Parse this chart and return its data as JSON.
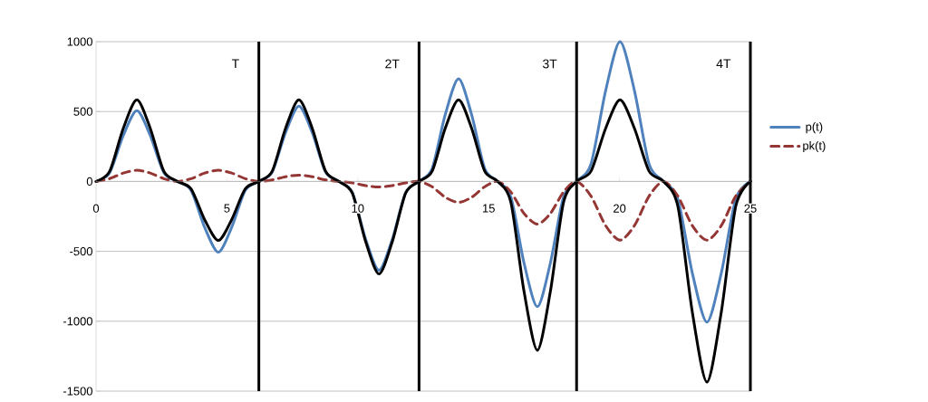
{
  "chart_data": {
    "type": "line",
    "x": [
      0,
      0.52,
      1.04,
      1.56,
      2.07,
      2.59,
      3.11,
      3.63,
      4.15,
      4.67,
      5.18,
      5.7,
      6.22,
      6.73,
      7.24,
      7.75,
      8.26,
      8.77,
      9.28,
      9.79,
      10.3,
      10.81,
      11.32,
      11.83,
      12.34,
      12.84,
      13.34,
      13.85,
      14.35,
      14.85,
      15.35,
      15.85,
      16.35,
      16.86,
      17.36,
      17.86,
      18.36,
      18.91,
      19.47,
      20.02,
      20.57,
      21.13,
      21.68,
      22.23,
      22.78,
      23.34,
      23.89,
      24.44,
      25.0
    ],
    "series": [
      {
        "name": "p(t)",
        "color": "#4f81bd",
        "line_style": "solid",
        "values": [
          0,
          63,
          329,
          506,
          329,
          63,
          0,
          -63,
          -329,
          -506,
          -329,
          -63,
          0,
          67,
          350,
          539,
          350,
          67,
          0,
          -80,
          -413,
          -636,
          -413,
          -80,
          0,
          92,
          477,
          734,
          477,
          92,
          0,
          -112,
          -582,
          -896,
          -582,
          -112,
          0,
          125,
          650,
          1000,
          650,
          125,
          0,
          -126,
          -654,
          -1006,
          -654,
          -126,
          0
        ]
      },
      {
        "name": "pk(t)",
        "color": "#943634",
        "line_style": "dashed",
        "values": [
          0,
          20,
          60,
          80,
          60,
          20,
          0,
          20,
          60,
          80,
          60,
          20,
          0,
          11,
          34,
          45,
          34,
          11,
          0,
          -10,
          -30,
          -40,
          -30,
          -10,
          0,
          -38,
          -113,
          -150,
          -113,
          -38,
          0,
          -76,
          -229,
          -305,
          -229,
          -76,
          0,
          -105,
          -316,
          -420,
          -316,
          -105,
          0,
          -105,
          -316,
          -420,
          -316,
          -105,
          0
        ]
      },
      {
        "color": "#000000",
        "line_style": "solid",
        "values": [
          0,
          73,
          380,
          584,
          380,
          73,
          0,
          -53,
          -274,
          -422,
          -274,
          -53,
          0,
          73,
          380,
          584,
          380,
          73,
          0,
          -83,
          -430,
          -662,
          -430,
          -83,
          0,
          73,
          380,
          584,
          380,
          73,
          0,
          -151,
          -785,
          -1208,
          -785,
          -151,
          0,
          73,
          380,
          584,
          380,
          73,
          0,
          -179,
          -933,
          -1435,
          -933,
          -179,
          0
        ]
      }
    ],
    "ref_lines": [
      {
        "axis": "x",
        "value": 6.22,
        "label": "T",
        "color": "#000000"
      },
      {
        "axis": "x",
        "value": 12.34,
        "label": "2T",
        "color": "#000000"
      },
      {
        "axis": "x",
        "value": 18.36,
        "label": "3T",
        "color": "#000000"
      },
      {
        "axis": "x",
        "value": 25.0,
        "label": "4T",
        "color": "#000000"
      }
    ],
    "xlim": [
      0,
      25
    ],
    "ylim": [
      -1500,
      1000
    ],
    "xticks": [
      0,
      5,
      10,
      15,
      20,
      25
    ],
    "yticks": [
      -1500,
      -1000,
      -500,
      0,
      500,
      1000
    ],
    "grid": "y",
    "legend": "right"
  }
}
